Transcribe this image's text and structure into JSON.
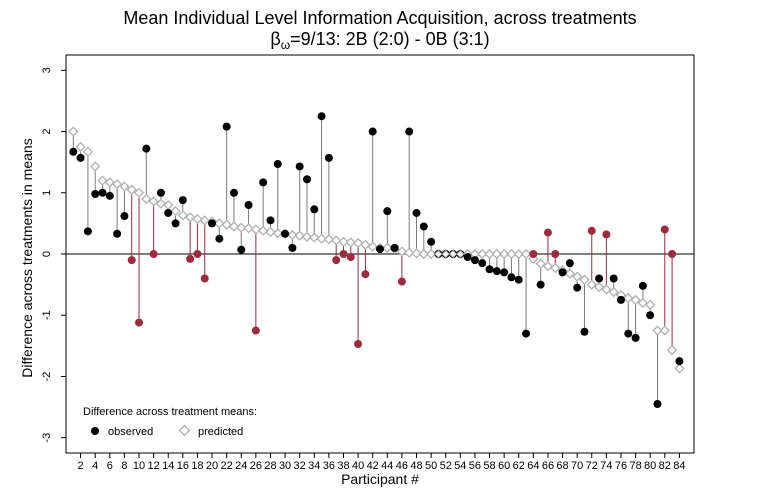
{
  "chart_data": {
    "type": "scatter",
    "title": "Mean Individual Level Information Acquisition, across treatments",
    "subtitle_prefix": "β",
    "subtitle_sub": "ω",
    "subtitle_rest": "=9/13: 2B (2:0) - 0B (3:1)",
    "xlabel": "Participant #",
    "ylabel": "Difference across treatments in means",
    "xlim": [
      0,
      86
    ],
    "ylim": [
      -3.25,
      3.25
    ],
    "xticks": [
      2,
      4,
      6,
      8,
      10,
      12,
      14,
      16,
      18,
      20,
      22,
      24,
      26,
      28,
      30,
      32,
      34,
      36,
      38,
      40,
      42,
      44,
      46,
      48,
      50,
      52,
      54,
      56,
      58,
      60,
      62,
      64,
      66,
      68,
      70,
      72,
      74,
      76,
      78,
      80,
      82,
      84
    ],
    "yticks": [
      -3,
      -2,
      -1,
      0,
      1,
      2,
      3
    ],
    "legend": {
      "title": "Difference across treatment means:",
      "observed_label": "observed",
      "predicted_label": "predicted",
      "placement": "bottom-left"
    },
    "colors": {
      "sign_diff": "#9e2a3c",
      "same_sign": "#7a7a7a",
      "observed": "#000000",
      "predicted": "#b0b0b0"
    },
    "participants": [
      1,
      2,
      3,
      4,
      5,
      6,
      7,
      8,
      9,
      10,
      11,
      12,
      13,
      14,
      15,
      16,
      17,
      18,
      19,
      20,
      21,
      22,
      23,
      24,
      25,
      26,
      27,
      28,
      29,
      30,
      31,
      32,
      33,
      34,
      35,
      36,
      37,
      38,
      39,
      40,
      41,
      42,
      43,
      44,
      45,
      46,
      47,
      48,
      49,
      50,
      51,
      52,
      53,
      54,
      55,
      56,
      57,
      58,
      59,
      60,
      61,
      62,
      63,
      64,
      65,
      66,
      67,
      68,
      69,
      70,
      71,
      72,
      73,
      74,
      75,
      76,
      77,
      78,
      79,
      80,
      81,
      82,
      83,
      84
    ],
    "series": [
      {
        "name": "observed",
        "values": [
          1.67,
          1.57,
          0.37,
          0.98,
          1.0,
          0.95,
          0.33,
          0.62,
          -0.1,
          -1.12,
          1.72,
          0.0,
          1.0,
          0.67,
          0.5,
          0.88,
          -0.08,
          0.0,
          -0.4,
          0.5,
          0.25,
          2.08,
          1.0,
          0.07,
          0.8,
          -1.25,
          1.17,
          0.55,
          1.47,
          0.33,
          0.1,
          1.43,
          1.22,
          0.73,
          2.25,
          1.57,
          -0.1,
          0.0,
          -0.05,
          -1.47,
          -0.33,
          2.0,
          0.08,
          0.7,
          0.1,
          -0.45,
          2.0,
          0.67,
          0.45,
          0.2,
          0.0,
          0.0,
          0.0,
          0.0,
          -0.05,
          -0.1,
          -0.15,
          -0.25,
          -0.28,
          -0.3,
          -0.38,
          -0.42,
          -1.3,
          0.0,
          -0.5,
          0.35,
          0.0,
          -0.3,
          -0.15,
          -0.55,
          -1.27,
          0.38,
          -0.4,
          0.32,
          -0.4,
          -0.75,
          -1.3,
          -1.37,
          -0.52,
          -1.0,
          -2.45,
          0.4,
          0.0,
          -1.75
        ]
      },
      {
        "name": "predicted",
        "values": [
          2.0,
          1.75,
          1.67,
          1.43,
          1.2,
          1.17,
          1.14,
          1.1,
          1.05,
          1.0,
          0.9,
          0.86,
          0.82,
          0.8,
          0.7,
          0.63,
          0.6,
          0.57,
          0.55,
          0.53,
          0.5,
          0.48,
          0.45,
          0.43,
          0.42,
          0.4,
          0.38,
          0.36,
          0.34,
          0.33,
          0.31,
          0.3,
          0.28,
          0.27,
          0.25,
          0.24,
          0.22,
          0.2,
          0.19,
          0.18,
          0.15,
          0.12,
          0.1,
          0.1,
          0.08,
          0.04,
          0.02,
          0.01,
          0.0,
          0.0,
          0.0,
          0.0,
          0.0,
          0.0,
          0.0,
          0.0,
          0.0,
          0.0,
          0.0,
          0.0,
          0.0,
          0.0,
          0.0,
          -0.08,
          -0.16,
          -0.2,
          -0.23,
          -0.27,
          -0.32,
          -0.37,
          -0.42,
          -0.5,
          -0.54,
          -0.58,
          -0.62,
          -0.67,
          -0.72,
          -0.75,
          -0.8,
          -0.83,
          -1.25,
          -1.25,
          -1.57,
          -1.87
        ]
      }
    ]
  }
}
